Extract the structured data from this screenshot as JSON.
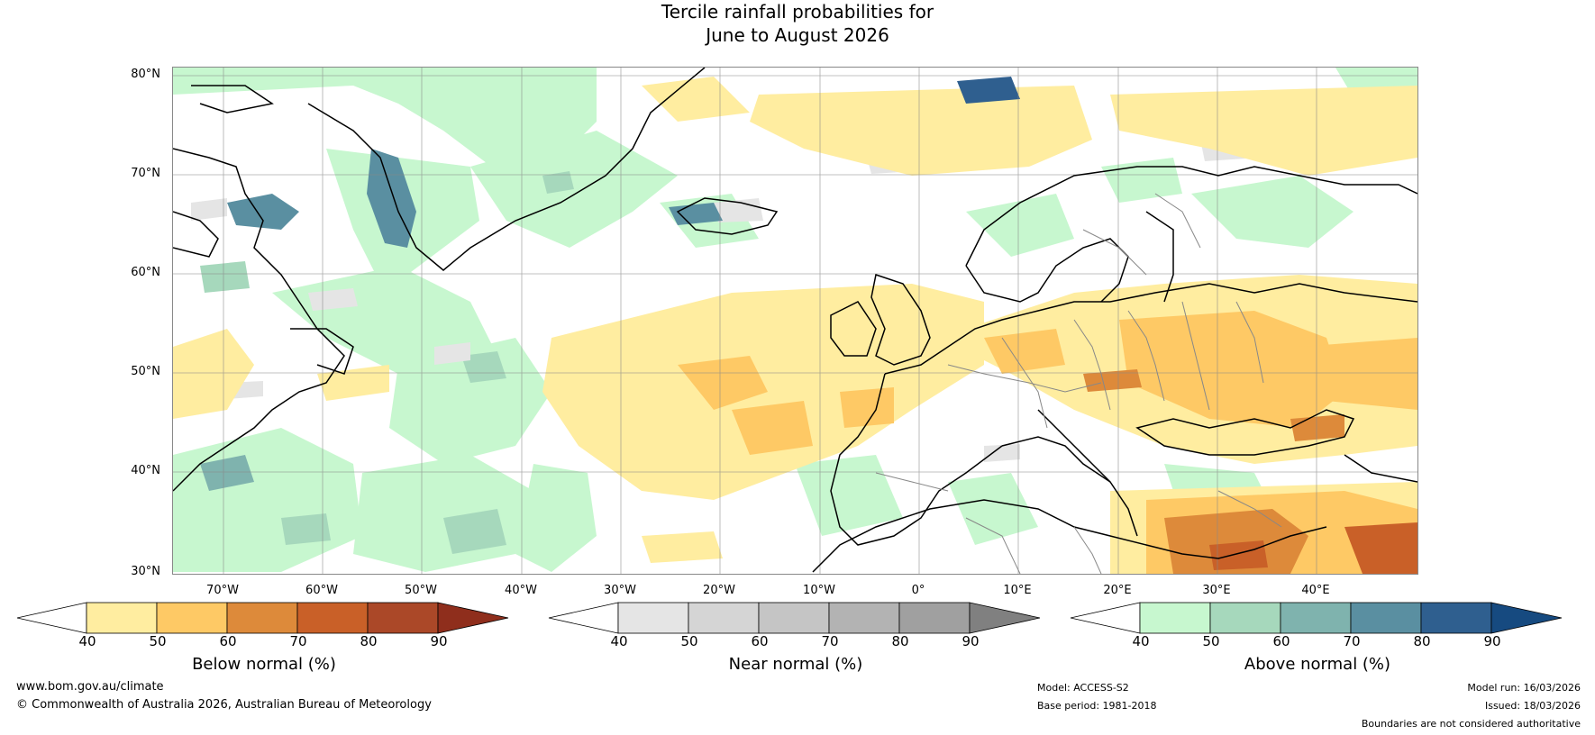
{
  "title": {
    "line1": "Tercile rainfall probabilities for",
    "line2": "June to August 2026"
  },
  "map": {
    "lat_labels": [
      "80°N",
      "70°N",
      "60°N",
      "50°N",
      "40°N",
      "30°N"
    ],
    "lon_labels": [
      "70°W",
      "60°W",
      "50°W",
      "40°W",
      "30°W",
      "20°W",
      "10°W",
      "0°",
      "10°E",
      "20°E",
      "30°E",
      "40°E"
    ],
    "colors": {
      "below_40_50": "#ffeda0",
      "below_50_60": "#fec965",
      "below_60_70": "#dd8a3a",
      "below_70_80": "#c96028",
      "near_40_50": "#e5e5e5",
      "above_40_50": "#c7f7cf",
      "above_50_60": "#a6d8bc",
      "above_60_70": "#7fb3ae",
      "above_70_80": "#5a8fa1",
      "above_80_90": "#2f5f8f"
    }
  },
  "colorbars": [
    {
      "label": "Below normal (%)",
      "ticks": [
        "40",
        "50",
        "60",
        "70",
        "80",
        "90"
      ],
      "colors": [
        "#ffffff",
        "#ffeda0",
        "#fec965",
        "#dd8a3a",
        "#c96028",
        "#ab4828",
        "#8f2e1c"
      ]
    },
    {
      "label": "Near normal (%)",
      "ticks": [
        "40",
        "50",
        "60",
        "70",
        "80",
        "90"
      ],
      "colors": [
        "#ffffff",
        "#e5e5e5",
        "#d5d5d5",
        "#c5c5c5",
        "#b3b3b3",
        "#a0a0a0",
        "#808080"
      ]
    },
    {
      "label": "Above normal (%)",
      "ticks": [
        "40",
        "50",
        "60",
        "70",
        "80",
        "90"
      ],
      "colors": [
        "#ffffff",
        "#c7f7cf",
        "#a6d8bc",
        "#7fb3ae",
        "#5a8fa1",
        "#2f5f8f",
        "#164a80"
      ]
    }
  ],
  "footer": {
    "url": "www.bom.gov.au/climate",
    "copyright": "© Commonwealth of Australia 2026, Australian Bureau of Meteorology",
    "model": "Model: ACCESS-S2",
    "base_period": "Base period: 1981-2018",
    "model_run": "Model run: 16/03/2026",
    "issued": "Issued: 18/03/2026",
    "disclaimer": "Boundaries are not considered authoritative"
  }
}
